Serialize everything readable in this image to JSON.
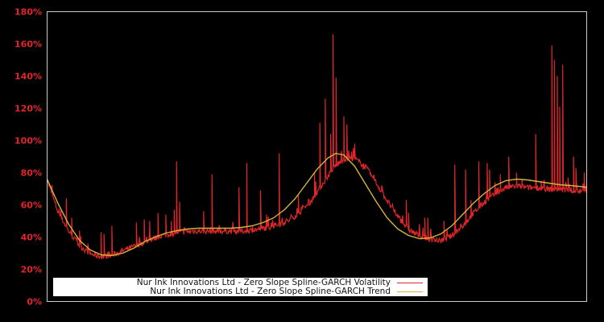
{
  "chart_data": {
    "type": "line",
    "title": "",
    "xlabel": "",
    "ylabel": "",
    "ylim": [
      0,
      180
    ],
    "y_ticks": [
      "0%",
      "20%",
      "40%",
      "60%",
      "80%",
      "100%",
      "120%",
      "140%",
      "160%",
      "180%"
    ],
    "grid": false,
    "legend_position": "lower left",
    "x_range_fraction": [
      0,
      1
    ],
    "series": [
      {
        "name": "Nur Ink Innovations Ltd - Zero Slope Spline-GARCH Volatility",
        "color": "#e0262b",
        "base": [
          [
            0.0,
            75
          ],
          [
            0.02,
            55
          ],
          [
            0.04,
            43
          ],
          [
            0.06,
            34
          ],
          [
            0.08,
            29
          ],
          [
            0.1,
            27
          ],
          [
            0.12,
            28
          ],
          [
            0.15,
            32
          ],
          [
            0.18,
            36
          ],
          [
            0.21,
            40
          ],
          [
            0.24,
            42
          ],
          [
            0.27,
            43
          ],
          [
            0.3,
            43
          ],
          [
            0.33,
            43
          ],
          [
            0.36,
            43
          ],
          [
            0.39,
            44
          ],
          [
            0.42,
            46
          ],
          [
            0.45,
            50
          ],
          [
            0.47,
            55
          ],
          [
            0.49,
            62
          ],
          [
            0.51,
            72
          ],
          [
            0.53,
            82
          ],
          [
            0.55,
            88
          ],
          [
            0.57,
            88
          ],
          [
            0.59,
            83
          ],
          [
            0.61,
            73
          ],
          [
            0.63,
            62
          ],
          [
            0.65,
            52
          ],
          [
            0.67,
            44
          ],
          [
            0.69,
            40
          ],
          [
            0.71,
            38
          ],
          [
            0.73,
            37
          ],
          [
            0.75,
            40
          ],
          [
            0.77,
            46
          ],
          [
            0.79,
            54
          ],
          [
            0.81,
            61
          ],
          [
            0.83,
            66
          ],
          [
            0.85,
            70
          ],
          [
            0.87,
            71
          ],
          [
            0.89,
            70
          ],
          [
            0.91,
            70
          ],
          [
            0.93,
            69
          ],
          [
            0.95,
            69
          ],
          [
            0.97,
            68
          ],
          [
            1.0,
            68
          ]
        ],
        "spikes": [
          [
            0.01,
            68
          ],
          [
            0.035,
            64
          ],
          [
            0.045,
            52
          ],
          [
            0.06,
            44
          ],
          [
            0.075,
            36
          ],
          [
            0.1,
            43
          ],
          [
            0.105,
            42
          ],
          [
            0.12,
            47
          ],
          [
            0.165,
            49
          ],
          [
            0.18,
            51
          ],
          [
            0.19,
            50
          ],
          [
            0.205,
            55
          ],
          [
            0.22,
            54
          ],
          [
            0.23,
            50
          ],
          [
            0.235,
            57
          ],
          [
            0.24,
            87
          ],
          [
            0.245,
            62
          ],
          [
            0.29,
            56
          ],
          [
            0.305,
            79
          ],
          [
            0.355,
            71
          ],
          [
            0.37,
            86
          ],
          [
            0.395,
            69
          ],
          [
            0.43,
            92
          ],
          [
            0.465,
            66
          ],
          [
            0.495,
            80
          ],
          [
            0.505,
            111
          ],
          [
            0.515,
            126
          ],
          [
            0.525,
            104
          ],
          [
            0.53,
            166
          ],
          [
            0.535,
            139
          ],
          [
            0.55,
            115
          ],
          [
            0.555,
            110
          ],
          [
            0.57,
            98
          ],
          [
            0.585,
            82
          ],
          [
            0.6,
            78
          ],
          [
            0.62,
            72
          ],
          [
            0.64,
            61
          ],
          [
            0.665,
            63
          ],
          [
            0.67,
            55
          ],
          [
            0.7,
            52
          ],
          [
            0.705,
            48
          ],
          [
            0.735,
            50
          ],
          [
            0.705,
            52
          ],
          [
            0.755,
            85
          ],
          [
            0.775,
            82
          ],
          [
            0.785,
            63
          ],
          [
            0.8,
            87
          ],
          [
            0.815,
            86
          ],
          [
            0.82,
            82
          ],
          [
            0.83,
            74
          ],
          [
            0.84,
            79
          ],
          [
            0.855,
            90
          ],
          [
            0.87,
            80
          ],
          [
            0.88,
            76
          ],
          [
            0.905,
            104
          ],
          [
            0.915,
            75
          ],
          [
            0.935,
            159
          ],
          [
            0.94,
            150
          ],
          [
            0.945,
            140
          ],
          [
            0.95,
            121
          ],
          [
            0.955,
            147
          ],
          [
            0.965,
            77
          ],
          [
            0.975,
            90
          ],
          [
            0.98,
            83
          ],
          [
            0.995,
            80
          ],
          [
            1.0,
            74
          ]
        ]
      },
      {
        "name": "Nur Ink Innovations Ltd - Zero Slope Spline-GARCH Trend",
        "color": "#d4b43c",
        "points": [
          [
            0.0,
            76
          ],
          [
            0.02,
            61
          ],
          [
            0.04,
            48
          ],
          [
            0.06,
            38
          ],
          [
            0.08,
            32
          ],
          [
            0.1,
            29
          ],
          [
            0.12,
            28.5
          ],
          [
            0.14,
            30
          ],
          [
            0.16,
            33
          ],
          [
            0.18,
            37
          ],
          [
            0.2,
            40
          ],
          [
            0.22,
            42.5
          ],
          [
            0.24,
            44
          ],
          [
            0.26,
            45
          ],
          [
            0.28,
            45.5
          ],
          [
            0.3,
            45.5
          ],
          [
            0.32,
            45.5
          ],
          [
            0.34,
            45.5
          ],
          [
            0.36,
            46
          ],
          [
            0.38,
            47
          ],
          [
            0.4,
            49
          ],
          [
            0.42,
            52
          ],
          [
            0.44,
            57
          ],
          [
            0.46,
            64
          ],
          [
            0.48,
            73
          ],
          [
            0.5,
            82
          ],
          [
            0.52,
            89
          ],
          [
            0.535,
            92
          ],
          [
            0.55,
            91
          ],
          [
            0.57,
            84
          ],
          [
            0.59,
            73
          ],
          [
            0.61,
            62
          ],
          [
            0.63,
            52
          ],
          [
            0.65,
            45
          ],
          [
            0.67,
            41
          ],
          [
            0.69,
            39
          ],
          [
            0.71,
            39.5
          ],
          [
            0.73,
            42
          ],
          [
            0.75,
            47
          ],
          [
            0.77,
            54
          ],
          [
            0.79,
            61
          ],
          [
            0.81,
            67
          ],
          [
            0.83,
            72
          ],
          [
            0.85,
            75
          ],
          [
            0.87,
            76
          ],
          [
            0.89,
            75.5
          ],
          [
            0.91,
            74.5
          ],
          [
            0.93,
            73.5
          ],
          [
            0.95,
            72.5
          ],
          [
            0.97,
            72
          ],
          [
            1.0,
            71
          ]
        ]
      }
    ]
  },
  "legend": {
    "items": [
      {
        "label": "Nur Ink Innovations Ltd - Zero Slope Spline-GARCH Volatility",
        "color": "#e0262b"
      },
      {
        "label": "Nur Ink Innovations Ltd - Zero Slope Spline-GARCH Trend",
        "color": "#d4b43c"
      }
    ]
  },
  "style": {
    "background": "#000000",
    "axis_color": "#cccccc",
    "tick_label_color": "#e0262b"
  }
}
